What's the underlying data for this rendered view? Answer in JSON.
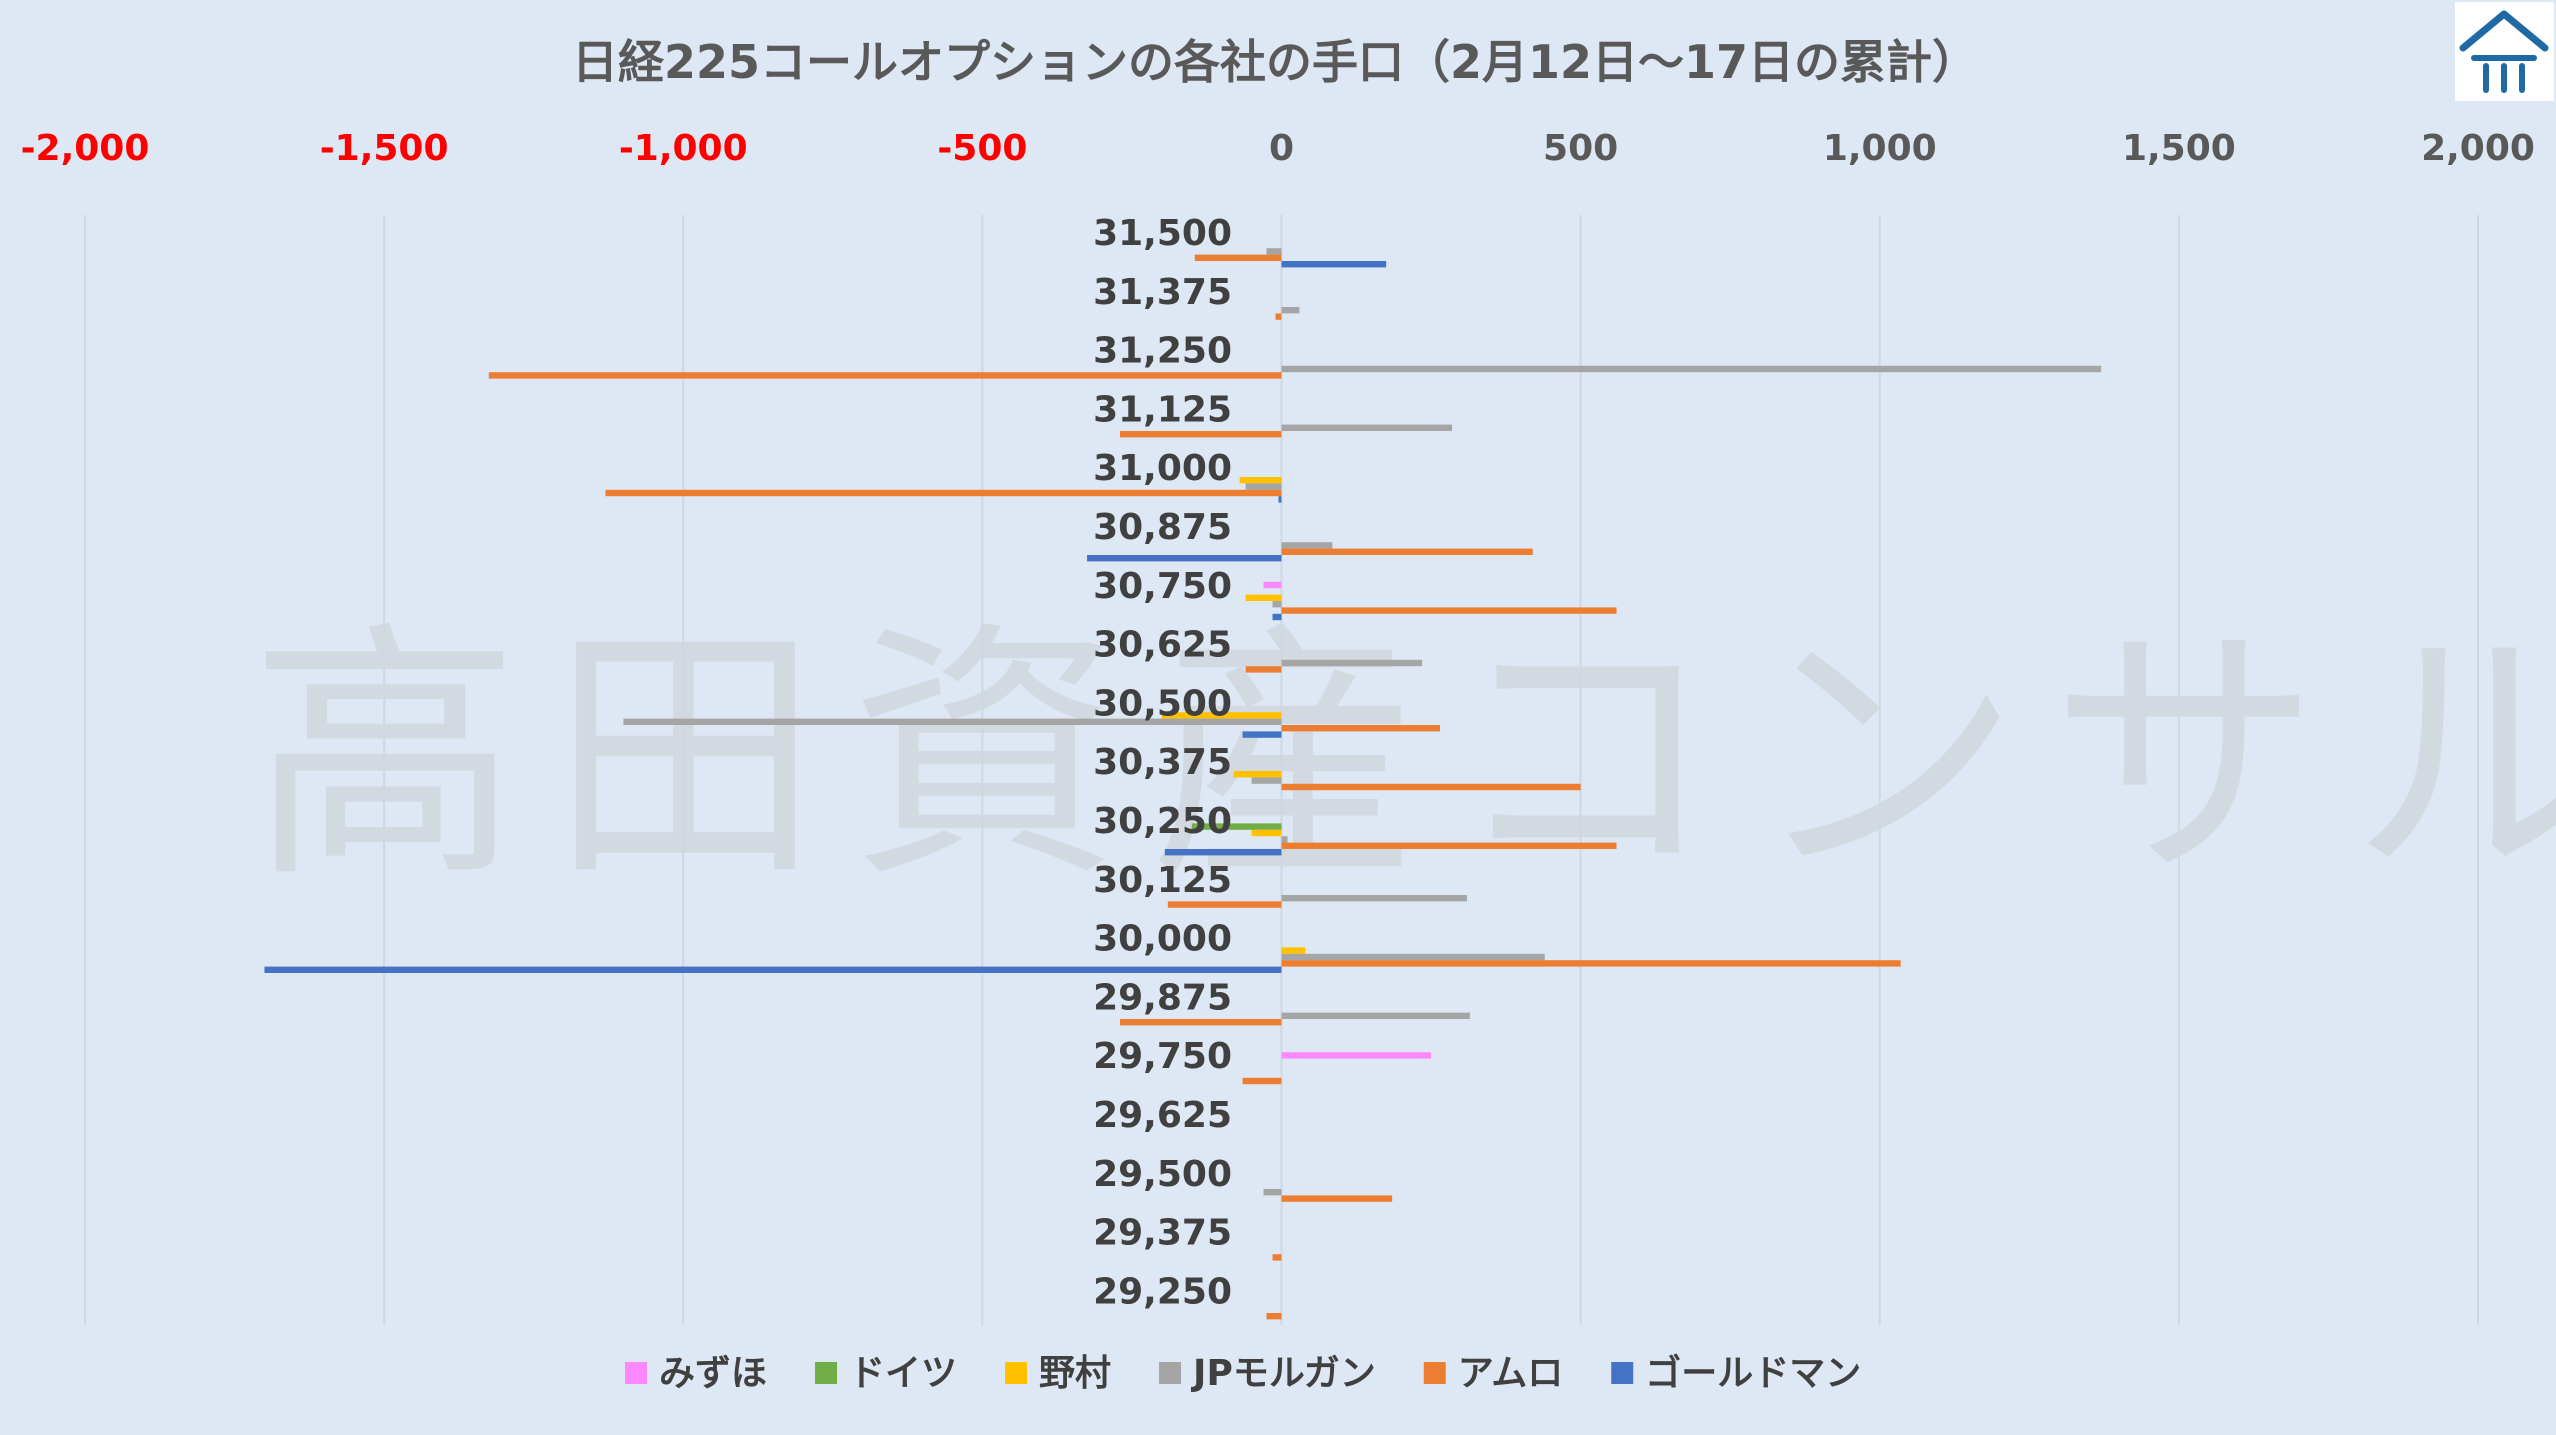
{
  "logo": {
    "icon": "house-roof-logo",
    "color": "#1f6aa5"
  },
  "watermark": "高田資産コンサル",
  "chart_data": {
    "type": "bar",
    "orientation": "horizontal",
    "title": "日経225コールオプションの各社の手口（2月12日～17日の累計）",
    "xlim": [
      -2000,
      2000
    ],
    "x_ticks": [
      {
        "value": -2000,
        "label": "-2,000"
      },
      {
        "value": -1500,
        "label": "-1,500"
      },
      {
        "value": -1000,
        "label": "-1,000"
      },
      {
        "value": -500,
        "label": "-500"
      },
      {
        "value": 0,
        "label": "0"
      },
      {
        "value": 500,
        "label": "500"
      },
      {
        "value": 1000,
        "label": "1,000"
      },
      {
        "value": 1500,
        "label": "1,500"
      },
      {
        "value": 2000,
        "label": "2,000"
      }
    ],
    "negative_tick_color": "#ff0000",
    "positive_tick_color": "#595959",
    "grid": "vertical",
    "legend_position": "bottom",
    "categories": [
      "31,500",
      "31,375",
      "31,250",
      "31,125",
      "31,000",
      "30,875",
      "30,750",
      "30,625",
      "30,500",
      "30,375",
      "30,250",
      "30,125",
      "30,000",
      "29,875",
      "29,750",
      "29,625",
      "29,500",
      "29,375",
      "29,250"
    ],
    "series": [
      {
        "name": "みずほ",
        "color": "#ff88ff",
        "values": [
          0,
          0,
          0,
          0,
          0,
          0,
          -30,
          0,
          0,
          0,
          0,
          0,
          0,
          0,
          250,
          0,
          0,
          0,
          0
        ]
      },
      {
        "name": "ドイツ",
        "color": "#70ad47",
        "values": [
          0,
          0,
          0,
          0,
          0,
          0,
          0,
          0,
          0,
          0,
          -150,
          0,
          0,
          0,
          0,
          0,
          0,
          0,
          0
        ]
      },
      {
        "name": "野村",
        "color": "#ffc000",
        "values": [
          0,
          0,
          0,
          0,
          -70,
          0,
          -60,
          0,
          -200,
          -80,
          -50,
          0,
          40,
          0,
          0,
          0,
          0,
          0,
          0
        ]
      },
      {
        "name": "JPモルガン",
        "color": "#a5a5a5",
        "values": [
          -25,
          30,
          1370,
          285,
          -60,
          85,
          -15,
          235,
          -1100,
          -50,
          10,
          310,
          440,
          315,
          0,
          0,
          -30,
          0,
          0
        ]
      },
      {
        "name": "アムロ",
        "color": "#ed7d31",
        "values": [
          -145,
          -10,
          -1325,
          -270,
          -1130,
          420,
          560,
          -60,
          265,
          500,
          560,
          -190,
          1035,
          -270,
          -65,
          0,
          185,
          -15,
          -25
        ]
      },
      {
        "name": "ゴールドマン",
        "color": "#4472c4",
        "values": [
          175,
          0,
          0,
          0,
          -5,
          -325,
          -15,
          0,
          -65,
          0,
          -195,
          0,
          -1700,
          0,
          0,
          0,
          0,
          0,
          0
        ]
      }
    ]
  }
}
